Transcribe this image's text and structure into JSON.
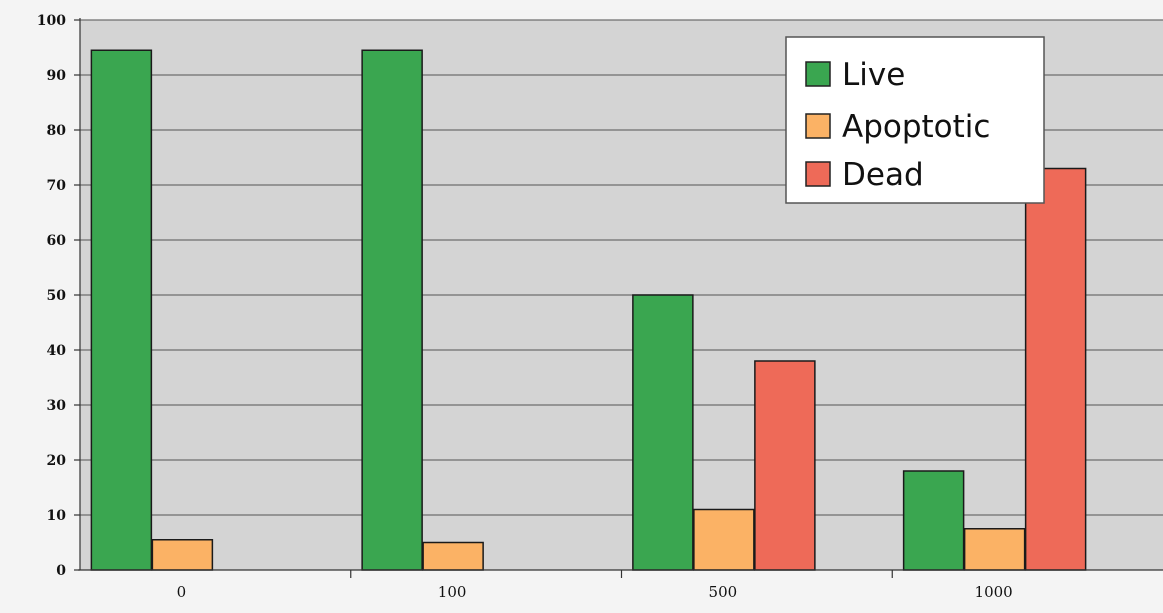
{
  "chart_data": {
    "type": "bar",
    "categories": [
      "0",
      "100",
      "500",
      "1000"
    ],
    "series": [
      {
        "name": "Live",
        "values": [
          94.5,
          94.5,
          50,
          18
        ],
        "color": "#3aa650"
      },
      {
        "name": "Apoptotic",
        "values": [
          5.5,
          5,
          11,
          7.5
        ],
        "color": "#fbb265"
      },
      {
        "name": "Dead",
        "values": [
          0,
          0,
          38,
          73
        ],
        "color": "#ee6a58"
      }
    ],
    "ylim": [
      0,
      100
    ],
    "yticks": [
      "0",
      "10",
      "20",
      "30",
      "40",
      "50",
      "60",
      "70",
      "80",
      "90",
      "100"
    ],
    "grid": true,
    "legend_position": "top-right",
    "plot_background": "#d4d4d4"
  }
}
